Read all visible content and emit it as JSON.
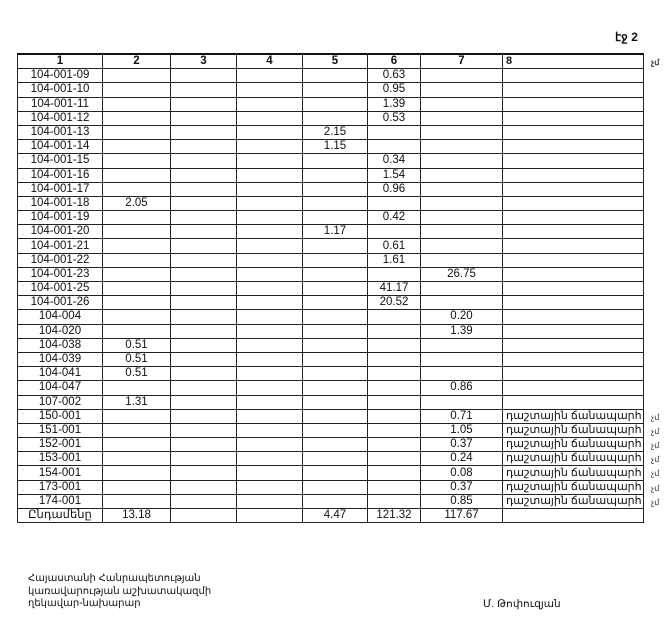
{
  "page_label": "էջ 2",
  "table": {
    "headers": [
      "1",
      "2",
      "3",
      "4",
      "5",
      "6",
      "7",
      "8"
    ],
    "rows": [
      [
        "104-001-09",
        "",
        "",
        "",
        "",
        "0.63",
        "",
        ""
      ],
      [
        "104-001-10",
        "",
        "",
        "",
        "",
        "0.95",
        "",
        ""
      ],
      [
        "104-001-11",
        "",
        "",
        "",
        "",
        "1.39",
        "",
        ""
      ],
      [
        "104-001-12",
        "",
        "",
        "",
        "",
        "0.53",
        "",
        ""
      ],
      [
        "104-001-13",
        "",
        "",
        "",
        "2.15",
        "",
        "",
        ""
      ],
      [
        "104-001-14",
        "",
        "",
        "",
        "1.15",
        "",
        "",
        ""
      ],
      [
        "104-001-15",
        "",
        "",
        "",
        "",
        "0.34",
        "",
        ""
      ],
      [
        "104-001-16",
        "",
        "",
        "",
        "",
        "1.54",
        "",
        ""
      ],
      [
        "104-001-17",
        "",
        "",
        "",
        "",
        "0.96",
        "",
        ""
      ],
      [
        "104-001-18",
        "2.05",
        "",
        "",
        "",
        "",
        "",
        ""
      ],
      [
        "104-001-19",
        "",
        "",
        "",
        "",
        "0.42",
        "",
        ""
      ],
      [
        "104-001-20",
        "",
        "",
        "",
        "1.17",
        "",
        "",
        ""
      ],
      [
        "104-001-21",
        "",
        "",
        "",
        "",
        "0.61",
        "",
        ""
      ],
      [
        "104-001-22",
        "",
        "",
        "",
        "",
        "1.61",
        "",
        ""
      ],
      [
        "104-001-23",
        "",
        "",
        "",
        "",
        "",
        "26.75",
        ""
      ],
      [
        "104-001-25",
        "",
        "",
        "",
        "",
        "41.17",
        "",
        ""
      ],
      [
        "104-001-26",
        "",
        "",
        "",
        "",
        "20.52",
        "",
        ""
      ],
      [
        "104-004",
        "",
        "",
        "",
        "",
        "",
        "0.20",
        ""
      ],
      [
        "104-020",
        "",
        "",
        "",
        "",
        "",
        "1.39",
        ""
      ],
      [
        "104-038",
        "0.51",
        "",
        "",
        "",
        "",
        "",
        ""
      ],
      [
        "104-039",
        "0.51",
        "",
        "",
        "",
        "",
        "",
        ""
      ],
      [
        "104-041",
        "0.51",
        "",
        "",
        "",
        "",
        "",
        ""
      ],
      [
        "104-047",
        "",
        "",
        "",
        "",
        "",
        "0.86",
        ""
      ],
      [
        "107-002",
        "1.31",
        "",
        "",
        "",
        "",
        "",
        ""
      ],
      [
        "150-001",
        "",
        "",
        "",
        "",
        "",
        "0.71",
        "դաշտային ճանապարհ"
      ],
      [
        "151-001",
        "",
        "",
        "",
        "",
        "",
        "1.05",
        "դաշտային ճանապարհ"
      ],
      [
        "152-001",
        "",
        "",
        "",
        "",
        "",
        "0.37",
        "դաշտային ճանապարհ"
      ],
      [
        "153-001",
        "",
        "",
        "",
        "",
        "",
        "0.24",
        "դաշտային ճանապարհ"
      ],
      [
        "154-001",
        "",
        "",
        "",
        "",
        "",
        "0.08",
        "դաշտային ճանապարհ"
      ],
      [
        "173-001",
        "",
        "",
        "",
        "",
        "",
        "0.37",
        "դաշտային ճանապարհ"
      ],
      [
        "174-001",
        "",
        "",
        "",
        "",
        "",
        "0.85",
        "դաշտային ճանապարհ"
      ]
    ],
    "row_suffix": "չմ",
    "total_row": [
      "Ընդամենը",
      "13.18",
      "",
      "",
      "4.47",
      "121.32",
      "117.67",
      ""
    ]
  },
  "footer": {
    "title_lines": [
      "Հայաստանի Հանրապետության",
      "կառավարության աշխատակազմի",
      "ղեկավար-նախարար"
    ],
    "signatory": "Մ. Թոփուզյան"
  }
}
